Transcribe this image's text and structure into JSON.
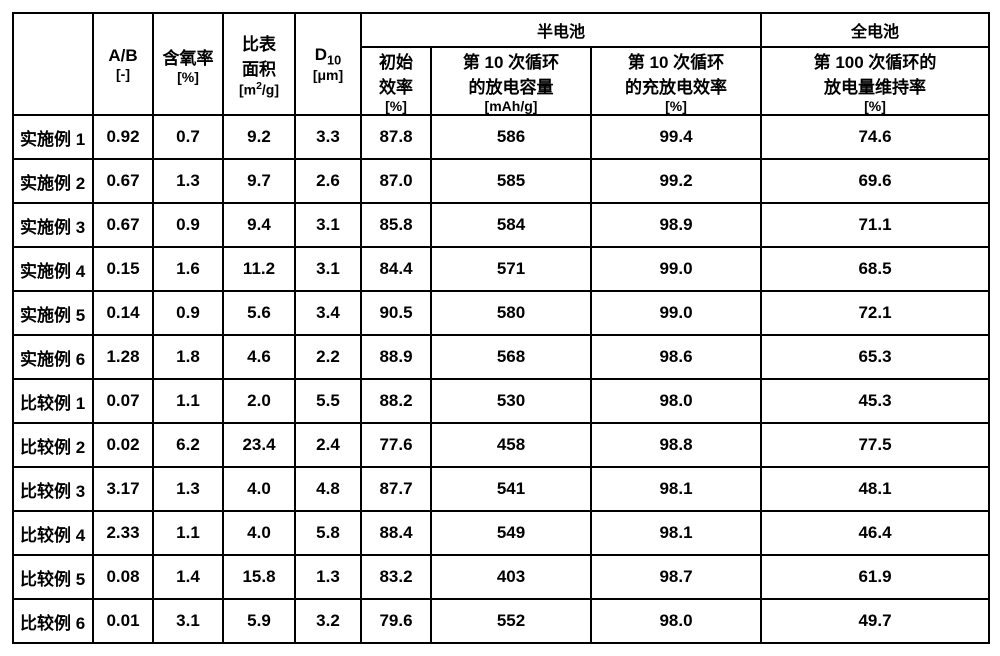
{
  "table": {
    "groupHeaders": {
      "half": "半电池",
      "full": "全电池"
    },
    "headers": {
      "blank": "",
      "ab": {
        "l1": "A/B",
        "l2": "[-]"
      },
      "oxygen": {
        "l1": "含氧率",
        "l2": "[%]"
      },
      "ssa_l1": "比表",
      "ssa_l2": "面积",
      "ssa_l3": "[m",
      "ssa_sup": "2",
      "ssa_l3b": "/g]",
      "d10_l1": "D",
      "d10_sub": "10",
      "d10_l2": "[μm]",
      "initEff_l1": "初始",
      "initEff_l2": "效率",
      "initEff_l3": "[%]",
      "dc10_l1": "第 10 次循环",
      "dc10_l2": "的放电容量",
      "dc10_l3": "[mAh/g]",
      "ce10_l1": "第 10 次循环",
      "ce10_l2": "的充放电效率",
      "ce10_l3": "[%]",
      "ret100_l1": "第 100 次循环的",
      "ret100_l2": "放电量维持率",
      "ret100_l3": "[%]"
    },
    "rows": [
      {
        "label": "实施例 1",
        "ab": "0.92",
        "ox": "0.7",
        "ssa": "9.2",
        "d10": "3.3",
        "ie": "87.8",
        "dc": "586",
        "ce": "99.4",
        "ret": "74.6"
      },
      {
        "label": "实施例 2",
        "ab": "0.67",
        "ox": "1.3",
        "ssa": "9.7",
        "d10": "2.6",
        "ie": "87.0",
        "dc": "585",
        "ce": "99.2",
        "ret": "69.6"
      },
      {
        "label": "实施例 3",
        "ab": "0.67",
        "ox": "0.9",
        "ssa": "9.4",
        "d10": "3.1",
        "ie": "85.8",
        "dc": "584",
        "ce": "98.9",
        "ret": "71.1"
      },
      {
        "label": "实施例 4",
        "ab": "0.15",
        "ox": "1.6",
        "ssa": "11.2",
        "d10": "3.1",
        "ie": "84.4",
        "dc": "571",
        "ce": "99.0",
        "ret": "68.5"
      },
      {
        "label": "实施例 5",
        "ab": "0.14",
        "ox": "0.9",
        "ssa": "5.6",
        "d10": "3.4",
        "ie": "90.5",
        "dc": "580",
        "ce": "99.0",
        "ret": "72.1"
      },
      {
        "label": "实施例 6",
        "ab": "1.28",
        "ox": "1.8",
        "ssa": "4.6",
        "d10": "2.2",
        "ie": "88.9",
        "dc": "568",
        "ce": "98.6",
        "ret": "65.3"
      },
      {
        "label": "比较例 1",
        "ab": "0.07",
        "ox": "1.1",
        "ssa": "2.0",
        "d10": "5.5",
        "ie": "88.2",
        "dc": "530",
        "ce": "98.0",
        "ret": "45.3"
      },
      {
        "label": "比较例 2",
        "ab": "0.02",
        "ox": "6.2",
        "ssa": "23.4",
        "d10": "2.4",
        "ie": "77.6",
        "dc": "458",
        "ce": "98.8",
        "ret": "77.5"
      },
      {
        "label": "比较例 3",
        "ab": "3.17",
        "ox": "1.3",
        "ssa": "4.0",
        "d10": "4.8",
        "ie": "87.7",
        "dc": "541",
        "ce": "98.1",
        "ret": "48.1"
      },
      {
        "label": "比较例 4",
        "ab": "2.33",
        "ox": "1.1",
        "ssa": "4.0",
        "d10": "5.8",
        "ie": "88.4",
        "dc": "549",
        "ce": "98.1",
        "ret": "46.4"
      },
      {
        "label": "比较例 5",
        "ab": "0.08",
        "ox": "1.4",
        "ssa": "15.8",
        "d10": "1.3",
        "ie": "83.2",
        "dc": "403",
        "ce": "98.7",
        "ret": "61.9"
      },
      {
        "label": "比较例 6",
        "ab": "0.01",
        "ox": "3.1",
        "ssa": "5.9",
        "d10": "3.2",
        "ie": "79.6",
        "dc": "552",
        "ce": "98.0",
        "ret": "49.7"
      }
    ]
  }
}
